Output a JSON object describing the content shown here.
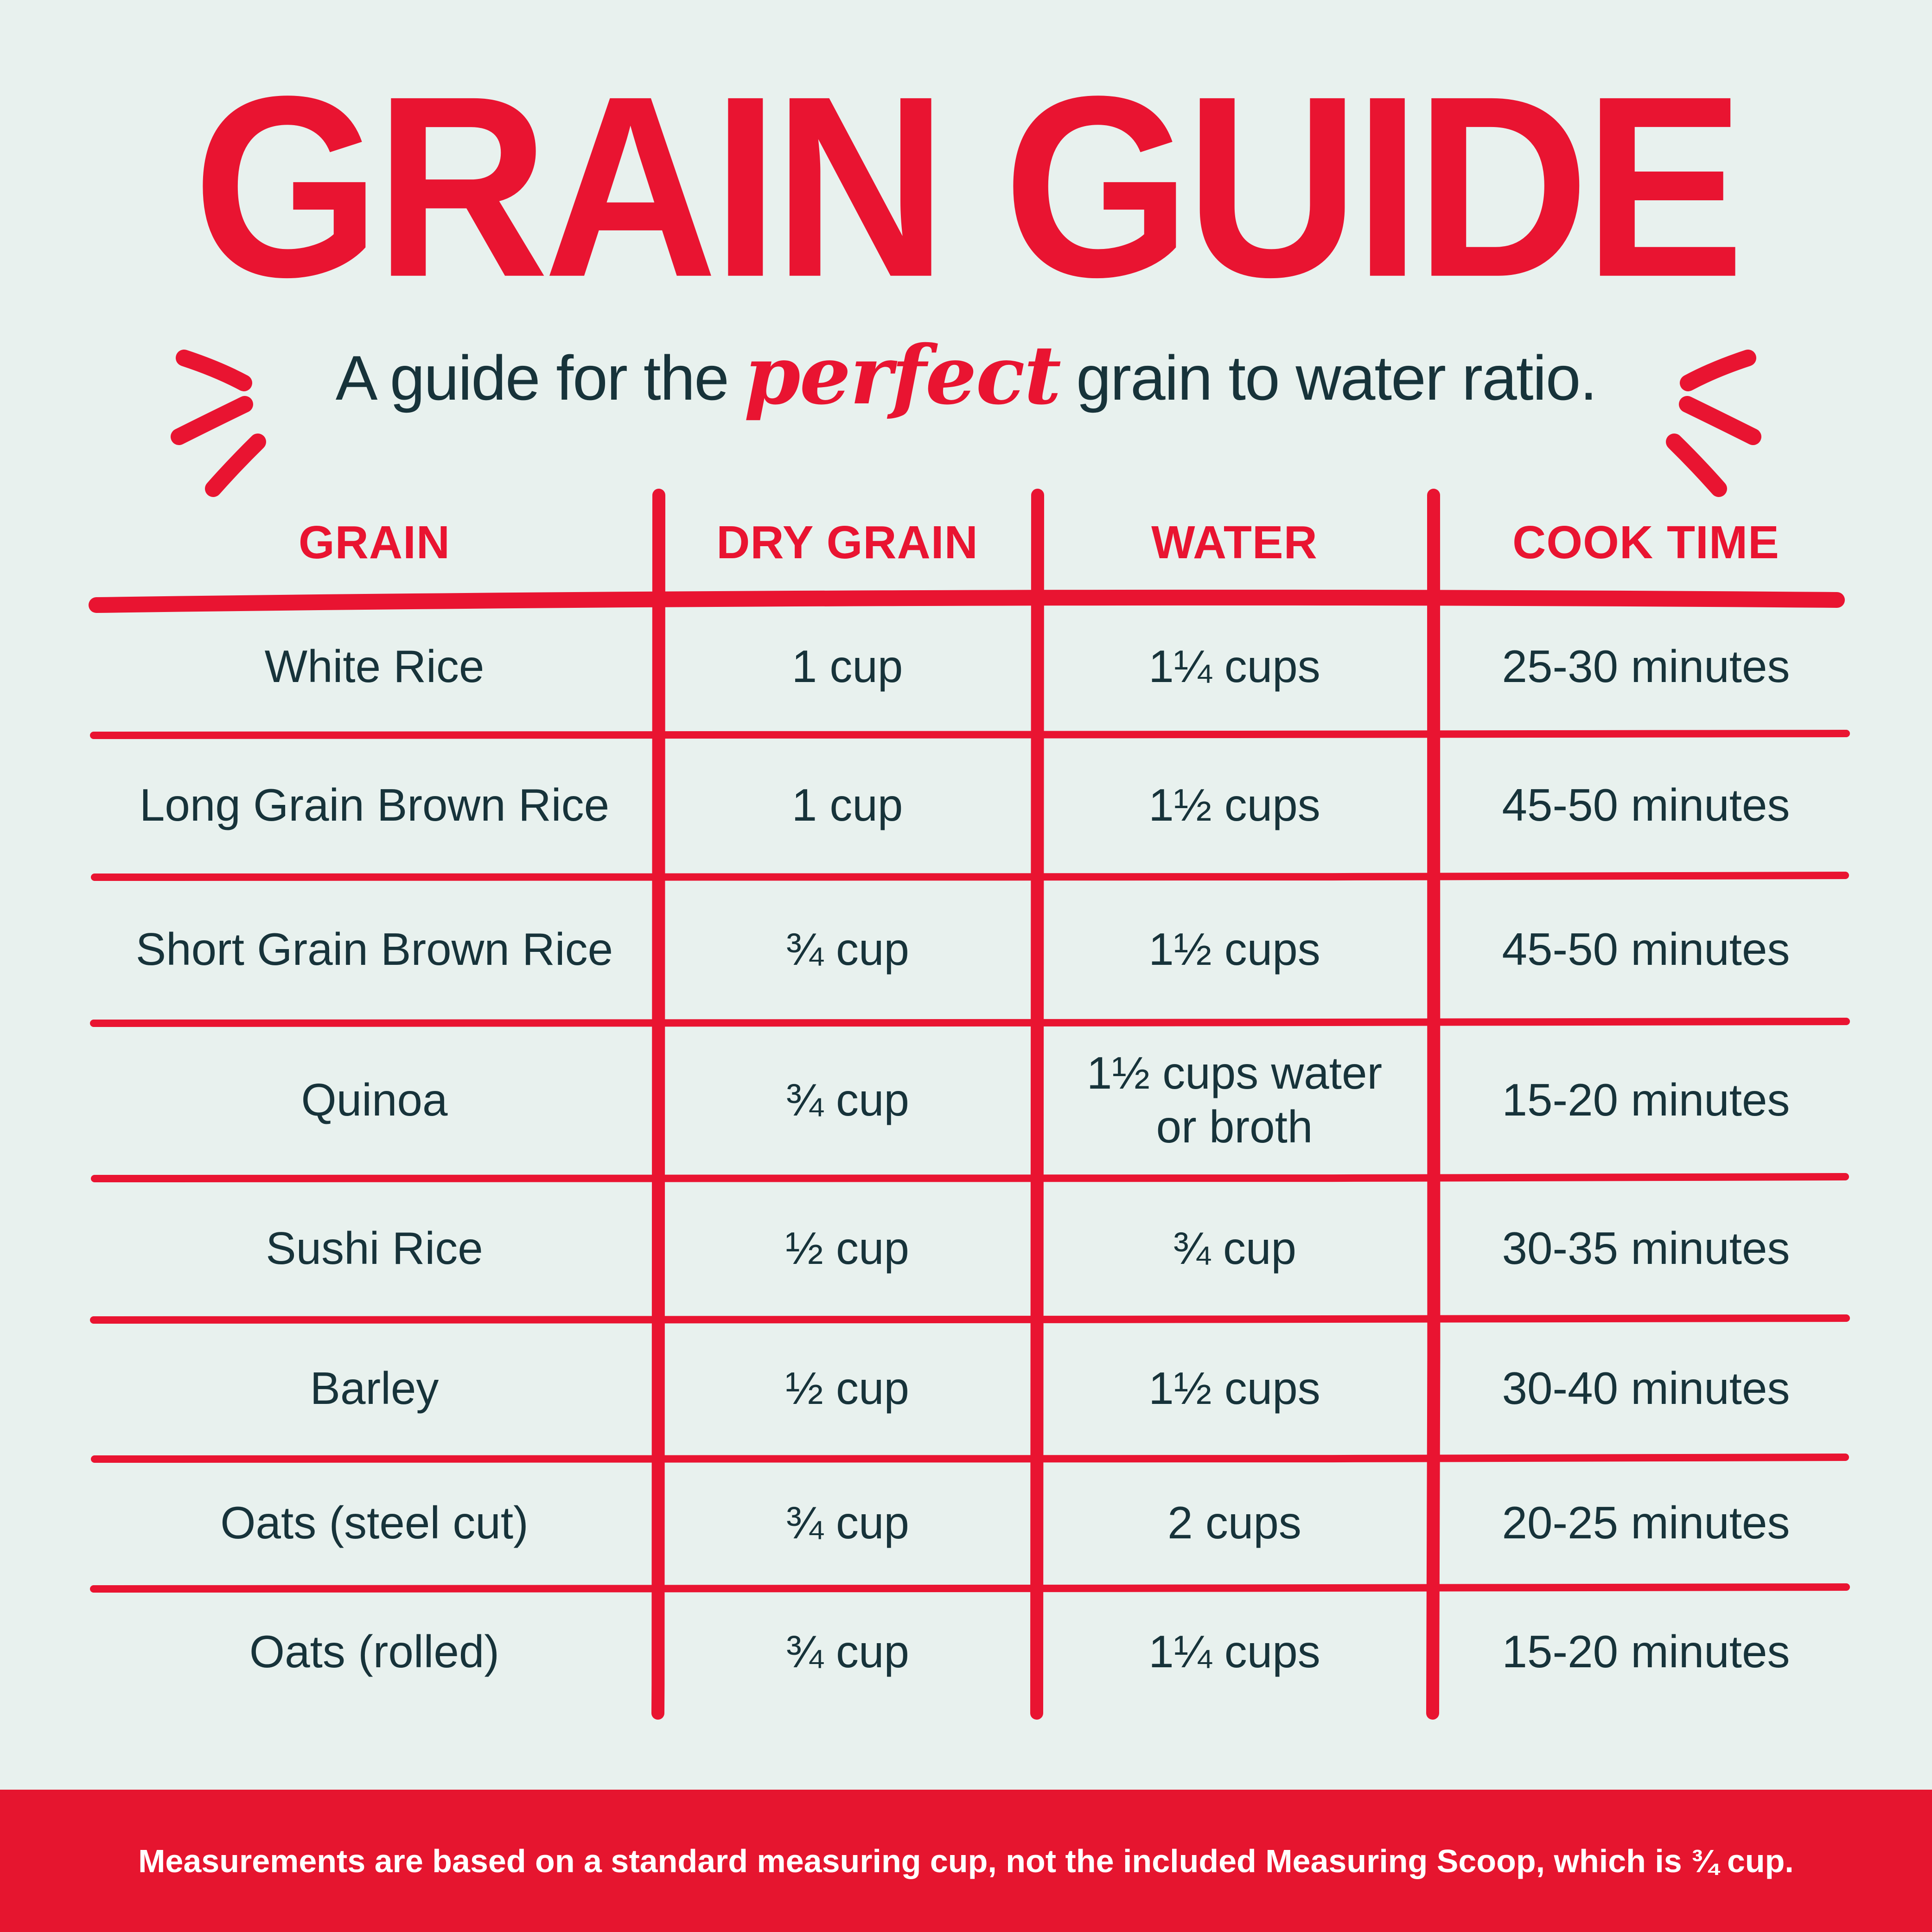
{
  "title": "GRAIN GUIDE",
  "subtitle": {
    "prefix": "A guide for the",
    "highlight": "perfect",
    "suffix": "grain to water ratio."
  },
  "table": {
    "headers": [
      "GRAIN",
      "DRY GRAIN",
      "WATER",
      "COOK TIME"
    ],
    "rows": [
      [
        "White Rice",
        "1 cup",
        "1¼ cups",
        "25-30 minutes"
      ],
      [
        "Long Grain Brown Rice",
        "1 cup",
        "1½ cups",
        "45-50 minutes"
      ],
      [
        "Short Grain Brown Rice",
        "¾ cup",
        "1½ cups",
        "45-50 minutes"
      ],
      [
        "Quinoa",
        "¾ cup",
        "1½ cups water\nor broth",
        "15-20 minutes"
      ],
      [
        "Sushi Rice",
        "½ cup",
        "¾ cup",
        "30-35 minutes"
      ],
      [
        "Barley",
        "½ cup",
        "1½ cups",
        "30-40 minutes"
      ],
      [
        "Oats (steel cut)",
        "¾ cup",
        "2 cups",
        "20-25 minutes"
      ],
      [
        "Oats (rolled)",
        "¾ cup",
        "1¼ cups",
        "15-20 minutes"
      ]
    ]
  },
  "footer": {
    "text": "Measurements are based on a standard measuring cup, not the included Measuring Scoop, which is ¾ cup."
  },
  "colors": {
    "background": "#e8f1ee",
    "accent_red": "#e91431",
    "text_dark": "#17333a",
    "footer_background": "#e6152f",
    "footer_text": "#ffffff"
  }
}
